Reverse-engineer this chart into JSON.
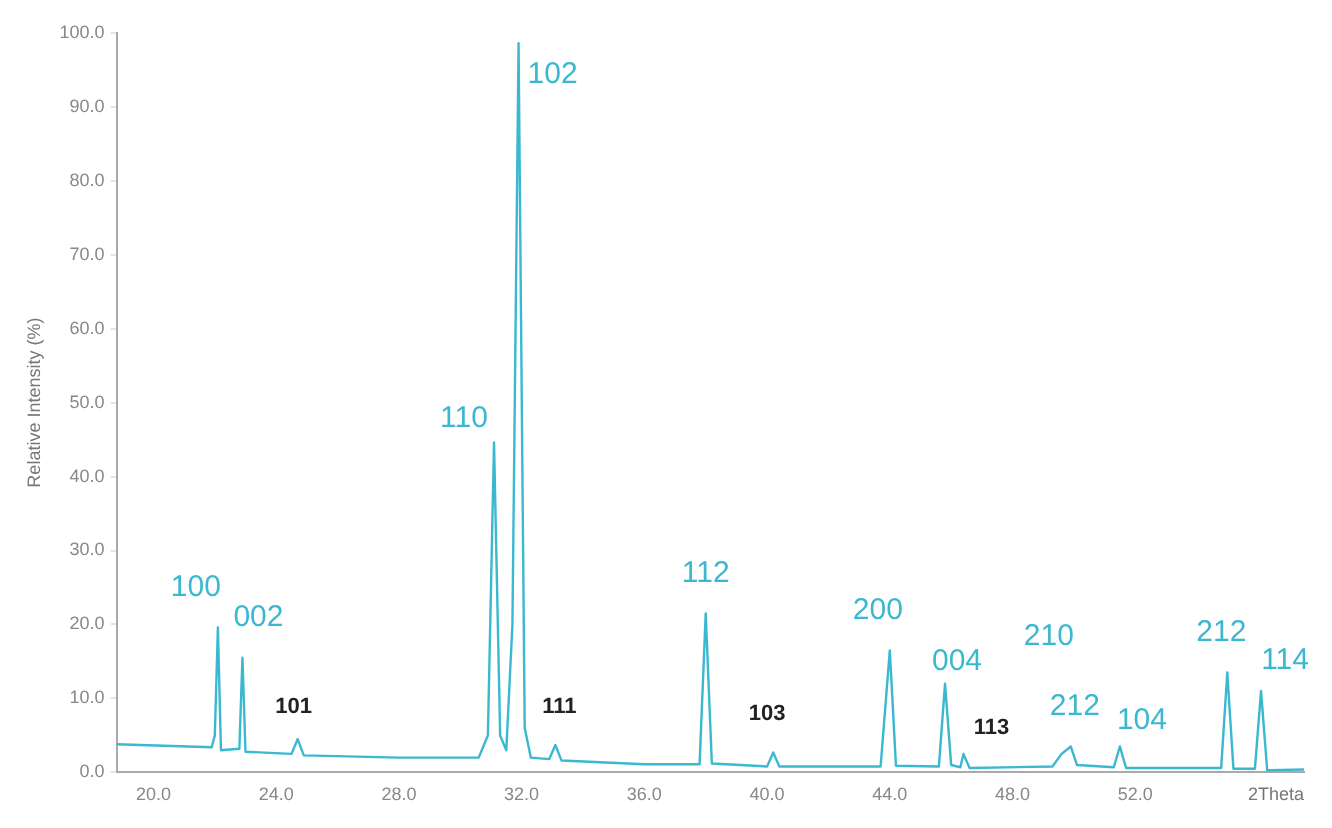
{
  "chart_data": {
    "type": "line",
    "xlabel": "2Theta",
    "ylabel": "Relative Intensity (%)",
    "xlim": [
      18.8,
      57.5
    ],
    "xticks": [
      {
        "value": 20,
        "label": "20.0"
      },
      {
        "value": 24,
        "label": "24.0"
      },
      {
        "value": 28,
        "label": "28.0"
      },
      {
        "value": 32,
        "label": "32.0"
      },
      {
        "value": 36,
        "label": "36.0"
      },
      {
        "value": 40,
        "label": "40.0"
      },
      {
        "value": 44,
        "label": "44.0"
      },
      {
        "value": 48,
        "label": "48.0"
      },
      {
        "value": 52,
        "label": "52.0"
      }
    ],
    "ylim": [
      0,
      100
    ],
    "yticks": [
      {
        "value": 0,
        "label": "0.0"
      },
      {
        "value": 10,
        "label": "10.0"
      },
      {
        "value": 20,
        "label": "20.0"
      },
      {
        "value": 30,
        "label": "30.0"
      },
      {
        "value": 40,
        "label": "40.0"
      },
      {
        "value": 50,
        "label": "50.0"
      },
      {
        "value": 60,
        "label": "60.0"
      },
      {
        "value": 70,
        "label": "70.0"
      },
      {
        "value": 80,
        "label": "80.0"
      },
      {
        "value": 90,
        "label": "90.0"
      },
      {
        "value": 100,
        "label": "100.0"
      }
    ],
    "grid": false,
    "legend": false,
    "marker": "none",
    "line_style": "solid",
    "series": [
      {
        "color": "#3ab8d0",
        "x": [
          18.8,
          21.9,
          22.0,
          22.1,
          22.2,
          22.8,
          22.9,
          23.0,
          24.5,
          24.7,
          24.9,
          28,
          30.6,
          30.9,
          31.1,
          31.3,
          31.5,
          31.7,
          31.9,
          32.1,
          32.3,
          32.9,
          33.1,
          33.3,
          36,
          37.8,
          38.0,
          38.2,
          40.0,
          40.2,
          40.4,
          43.7,
          44.0,
          44.2,
          45.6,
          45.8,
          46.0,
          46.3,
          46.4,
          46.6,
          49.3,
          49.6,
          49.9,
          50.1,
          51.3,
          51.5,
          51.7,
          54.8,
          55.0,
          55.2,
          55.9,
          56.1,
          56.3,
          57.5
        ],
        "values": [
          3.8,
          3.4,
          5,
          19.6,
          3,
          3.2,
          15.5,
          2.8,
          2.5,
          4.5,
          2.3,
          2.0,
          2.0,
          5,
          44.6,
          5,
          3,
          20,
          98.6,
          6,
          2,
          1.8,
          3.7,
          1.6,
          1.1,
          1.1,
          21.5,
          1.2,
          0.8,
          2.7,
          0.8,
          0.8,
          16.5,
          0.9,
          0.8,
          12,
          1,
          0.7,
          2.5,
          0.6,
          0.8,
          2.5,
          3.5,
          1,
          0.7,
          3.5,
          0.6,
          0.6,
          13.5,
          0.5,
          0.5,
          11,
          0.3,
          0.4
        ]
      }
    ],
    "annotations": [
      {
        "text": "100",
        "x": 22.1,
        "y": 19.6
      },
      {
        "text": "002",
        "x": 22.9,
        "y": 15.5
      },
      {
        "text": "101",
        "x": 24.7,
        "y": 4.5
      },
      {
        "text": "110",
        "x": 31.1,
        "y": 44.6
      },
      {
        "text": "102",
        "x": 31.9,
        "y": 98.6
      },
      {
        "text": "111",
        "x": 33.1,
        "y": 3.7
      },
      {
        "text": "112",
        "x": 38.0,
        "y": 21.5
      },
      {
        "text": "103",
        "x": 40.2,
        "y": 2.7
      },
      {
        "text": "200",
        "x": 44.0,
        "y": 16.5
      },
      {
        "text": "004",
        "x": 45.8,
        "y": 12
      },
      {
        "text": "113",
        "x": 46.4,
        "y": 2.5
      },
      "210",
      {
        "text": "212",
        "x": 49.9,
        "y": 3.5
      },
      {
        "text": "104",
        "x": 51.5,
        "y": 3.5
      },
      {
        "text": "212",
        "x": 55.0,
        "y": 13.5
      },
      {
        "text": "114",
        "x": 56.1,
        "y": 11
      }
    ]
  }
}
